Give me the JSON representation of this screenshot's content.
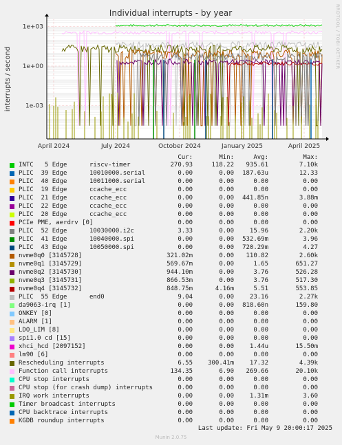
{
  "chart_data": {
    "type": "line",
    "title": "Individual interrupts - by year",
    "ylabel": "interrupts / second",
    "yscale": "log",
    "ylim": [
      1e-05,
      3000
    ],
    "yticks": [
      "1e+03",
      "1e+00",
      "1e-03"
    ],
    "xticks": [
      "April 2024",
      "July 2024",
      "October 2024",
      "January 2025",
      "April 2025"
    ],
    "grid": true,
    "columns": [
      "Cur:",
      "Min:",
      "Avg:",
      "Max:"
    ],
    "series": [
      {
        "name": "INTC   5 Edge      riscv-timer",
        "color": "#00cc00",
        "cur": "270.93",
        "min": "118.22",
        "avg": "935.61",
        "max": "7.10k"
      },
      {
        "name": "PLIC  39 Edge      10010000.serial",
        "color": "#0066b3",
        "cur": "0.00",
        "min": "0.00",
        "avg": "187.63u",
        "max": "12.33"
      },
      {
        "name": "PLIC  40 Edge      10011000.serial",
        "color": "#ff8000",
        "cur": "0.00",
        "min": "0.00",
        "avg": "0.00",
        "max": "0.00"
      },
      {
        "name": "PLIC  19 Edge      ccache_ecc",
        "color": "#ffcc00",
        "cur": "0.00",
        "min": "0.00",
        "avg": "0.00",
        "max": "0.00"
      },
      {
        "name": "PLIC  21 Edge      ccache_ecc",
        "color": "#330099",
        "cur": "0.00",
        "min": "0.00",
        "avg": "441.85n",
        "max": "3.88m"
      },
      {
        "name": "PLIC  22 Edge      ccache_ecc",
        "color": "#990099",
        "cur": "0.00",
        "min": "0.00",
        "avg": "0.00",
        "max": "0.00"
      },
      {
        "name": "PLIC  20 Edge      ccache_ecc",
        "color": "#ccff00",
        "cur": "0.00",
        "min": "0.00",
        "avg": "0.00",
        "max": "0.00"
      },
      {
        "name": "PCIe PME, aerdrv [0]",
        "color": "#ff0000",
        "cur": "0.00",
        "min": "0.00",
        "avg": "0.00",
        "max": "0.00"
      },
      {
        "name": "PLIC  52 Edge      10030000.i2c",
        "color": "#808080",
        "cur": "3.33",
        "min": "0.00",
        "avg": "15.96",
        "max": "2.20k"
      },
      {
        "name": "PLIC  41 Edge      10040000.spi",
        "color": "#008f00",
        "cur": "0.00",
        "min": "0.00",
        "avg": "532.69m",
        "max": "3.96"
      },
      {
        "name": "PLIC  43 Edge      10050000.spi",
        "color": "#00487d",
        "cur": "0.00",
        "min": "0.00",
        "avg": "720.29m",
        "max": "4.27"
      },
      {
        "name": "nvme0q0 [3145728]",
        "color": "#b35a00",
        "cur": "321.02m",
        "min": "0.00",
        "avg": "110.82",
        "max": "2.60k"
      },
      {
        "name": "nvme0q1 [3145729]",
        "color": "#b38f00",
        "cur": "569.67m",
        "min": "0.00",
        "avg": "1.65",
        "max": "651.27"
      },
      {
        "name": "nvme0q2 [3145730]",
        "color": "#6b006b",
        "cur": "944.10m",
        "min": "0.00",
        "avg": "3.76",
        "max": "526.28"
      },
      {
        "name": "nvme0q3 [3145731]",
        "color": "#8fb300",
        "cur": "866.53m",
        "min": "0.00",
        "avg": "3.76",
        "max": "517.30"
      },
      {
        "name": "nvme0q4 [3145732]",
        "color": "#b30000",
        "cur": "848.75m",
        "min": "4.16m",
        "avg": "5.51",
        "max": "553.85"
      },
      {
        "name": "PLIC  55 Edge      end0",
        "color": "#bebebe",
        "cur": "9.04",
        "min": "0.00",
        "avg": "23.16",
        "max": "2.27k"
      },
      {
        "name": "da9063-irq [1]",
        "color": "#80ff80",
        "cur": "0.00",
        "min": "0.00",
        "avg": "818.60n",
        "max": "159.80"
      },
      {
        "name": "ONKEY [0]",
        "color": "#80c9ff",
        "cur": "0.00",
        "min": "0.00",
        "avg": "0.00",
        "max": "0.00"
      },
      {
        "name": "ALARM [1]",
        "color": "#ffc080",
        "cur": "0.00",
        "min": "0.00",
        "avg": "0.00",
        "max": "0.00"
      },
      {
        "name": "LDO_LIM [8]",
        "color": "#ffe680",
        "cur": "0.00",
        "min": "0.00",
        "avg": "0.00",
        "max": "0.00"
      },
      {
        "name": "spi1.0 cd [15]",
        "color": "#aa80ff",
        "cur": "0.00",
        "min": "0.00",
        "avg": "0.00",
        "max": "0.00"
      },
      {
        "name": "xhci_hcd [2097152]",
        "color": "#ee00cc",
        "cur": "0.00",
        "min": "0.00",
        "avg": "1.44u",
        "max": "15.50m"
      },
      {
        "name": "lm90 [6]",
        "color": "#ff8080",
        "cur": "0.00",
        "min": "0.00",
        "avg": "0.00",
        "max": "0.00"
      },
      {
        "name": "Rescheduling interrupts",
        "color": "#666600",
        "cur": "6.55",
        "min": "300.41m",
        "avg": "17.32",
        "max": "4.39k"
      },
      {
        "name": "Function call interrupts",
        "color": "#ffbfff",
        "cur": "134.35",
        "min": "6.90",
        "avg": "269.66",
        "max": "20.10k"
      },
      {
        "name": "CPU stop interrupts",
        "color": "#00ffcc",
        "cur": "0.00",
        "min": "0.00",
        "avg": "0.00",
        "max": "0.00"
      },
      {
        "name": "CPU stop (for crash dump) interrupts",
        "color": "#cc6699",
        "cur": "0.00",
        "min": "0.00",
        "avg": "0.00",
        "max": "0.00"
      },
      {
        "name": "IRQ work interrupts",
        "color": "#999900",
        "cur": "0.00",
        "min": "0.00",
        "avg": "1.31m",
        "max": "3.60"
      },
      {
        "name": "Timer broadcast interrupts",
        "color": "#00cc00",
        "cur": "0.00",
        "min": "0.00",
        "avg": "0.00",
        "max": "0.00"
      },
      {
        "name": "CPU backtrace interrupts",
        "color": "#0066b3",
        "cur": "0.00",
        "min": "0.00",
        "avg": "0.00",
        "max": "0.00"
      },
      {
        "name": "KGDB roundup interrupts",
        "color": "#ff8000",
        "cur": "0.00",
        "min": "0.00",
        "avg": "0.00",
        "max": "0.00"
      }
    ]
  },
  "last_update": "Last update:  Fri May  9 20:00:17 2025",
  "footer": "Munin 2.0.75",
  "side_label": "RRDTOOL / TOBI OETIKER"
}
